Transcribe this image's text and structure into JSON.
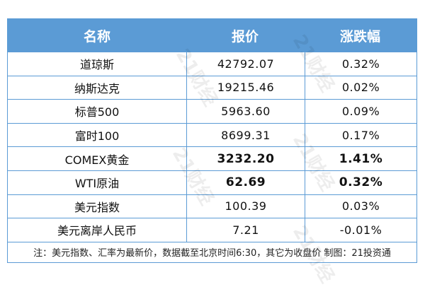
{
  "headers": [
    "名称",
    "报价",
    "涨跌幅"
  ],
  "rows": [
    {
      "name": "道琼斯",
      "price": "42792.07",
      "change": "0.32%",
      "bold": false
    },
    {
      "name": "纳斯达克",
      "price": "19215.46",
      "change": "0.02%",
      "bold": false
    },
    {
      "name": "标普500",
      "price": "5963.60",
      "change": "0.09%",
      "bold": false
    },
    {
      "name": "富时100",
      "price": "8699.31",
      "change": "0.17%",
      "bold": false
    },
    {
      "name": "COMEX黄金",
      "price": "3232.20",
      "change": "1.41%",
      "bold": true
    },
    {
      "name": "WTI原油",
      "price": "62.69",
      "change": "0.32%",
      "bold": true
    },
    {
      "name": "美元指数",
      "price": "100.39",
      "change": "0.03%",
      "bold": false
    },
    {
      "name": "美元离岸人民币",
      "price": "7.21",
      "change": "-0.01%",
      "bold": false
    }
  ],
  "footnote": "注：美元指数、汇率为最新价，数据截至北京时间6:30，其它为收盘价 制图：21投资通",
  "watermark": "21财经",
  "colors": {
    "header_bg": "#5b9bd5",
    "border": "#5b9bd5"
  }
}
